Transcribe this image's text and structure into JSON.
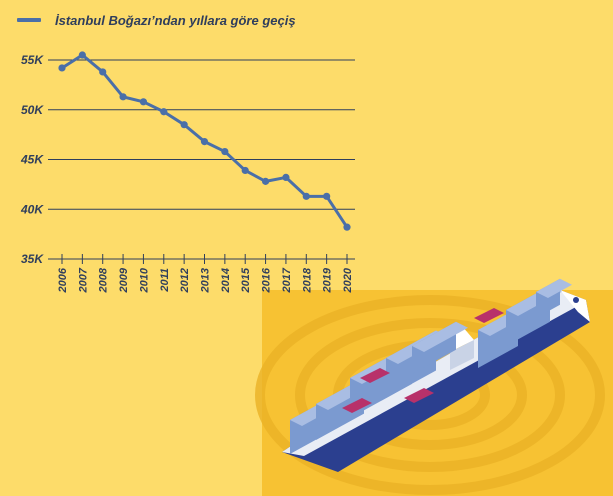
{
  "chart_data": {
    "type": "line",
    "title": "",
    "xlabel": "",
    "ylabel": "",
    "legend": "top-left",
    "grid": "horizontal",
    "x": [
      "2006",
      "2007",
      "2008",
      "2009",
      "2010",
      "2011",
      "2012",
      "2013",
      "2014",
      "2015",
      "2016",
      "2017",
      "2018",
      "2019",
      "2020"
    ],
    "y_ticks": [
      "35K",
      "40K",
      "45K",
      "50K",
      "55K"
    ],
    "y_tick_values": [
      35000,
      40000,
      45000,
      50000,
      55000
    ],
    "ylim": [
      35000,
      55000
    ],
    "series": [
      {
        "name": "İstanbul Boğazı’ndan yıllara göre geçiş",
        "color": "#4a6fa8",
        "values": [
          54200,
          55500,
          53800,
          51300,
          50800,
          49800,
          48500,
          46800,
          45800,
          43900,
          42800,
          43200,
          41300,
          41300,
          38200
        ]
      }
    ]
  },
  "illustration": {
    "subject": "container-ship-icon",
    "backdrop_color": "#f7c233",
    "hull_color": "#2b3f8f",
    "container_color": "#7b9ad0",
    "accent_color": "#b8316a"
  }
}
